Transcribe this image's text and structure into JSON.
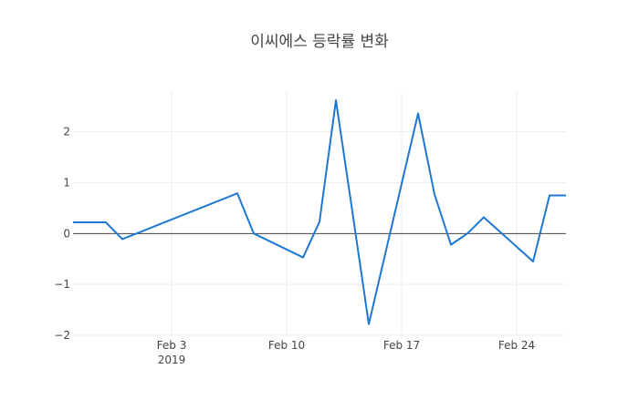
{
  "chart_data": {
    "type": "line",
    "title": "이씨에스 등락률 변화",
    "xlabel": "",
    "ylabel": "",
    "x": [
      "2019-01-28",
      "2019-01-29",
      "2019-01-30",
      "2019-01-31",
      "2019-02-07",
      "2019-02-08",
      "2019-02-11",
      "2019-02-12",
      "2019-02-13",
      "2019-02-14",
      "2019-02-15",
      "2019-02-18",
      "2019-02-19",
      "2019-02-20",
      "2019-02-21",
      "2019-02-22",
      "2019-02-25",
      "2019-02-26",
      "2019-02-27"
    ],
    "series": [
      {
        "name": "",
        "color": "#1f77d4",
        "values": [
          0.22,
          0.22,
          0.22,
          -0.11,
          0.79,
          0.0,
          -0.47,
          0.23,
          2.62,
          0.43,
          -1.78,
          2.36,
          0.77,
          -0.22,
          0.0,
          0.32,
          -0.55,
          0.75,
          0.75
        ]
      }
    ],
    "xlim": [
      "2019-01-28",
      "2019-02-27"
    ],
    "ylim": [
      -2,
      2.8
    ],
    "x_ticks": [
      {
        "value": "2019-02-03",
        "label": "Feb 3",
        "sublabel": "2019"
      },
      {
        "value": "2019-02-10",
        "label": "Feb 10",
        "sublabel": ""
      },
      {
        "value": "2019-02-17",
        "label": "Feb 17",
        "sublabel": ""
      },
      {
        "value": "2019-02-24",
        "label": "Feb 24",
        "sublabel": ""
      }
    ],
    "y_ticks": [
      {
        "value": 2,
        "label": "2"
      },
      {
        "value": 1,
        "label": "1"
      },
      {
        "value": 0,
        "label": "0"
      },
      {
        "value": -1,
        "label": "−1"
      },
      {
        "value": -2,
        "label": "−2"
      }
    ],
    "grid": true,
    "legend": "none"
  }
}
